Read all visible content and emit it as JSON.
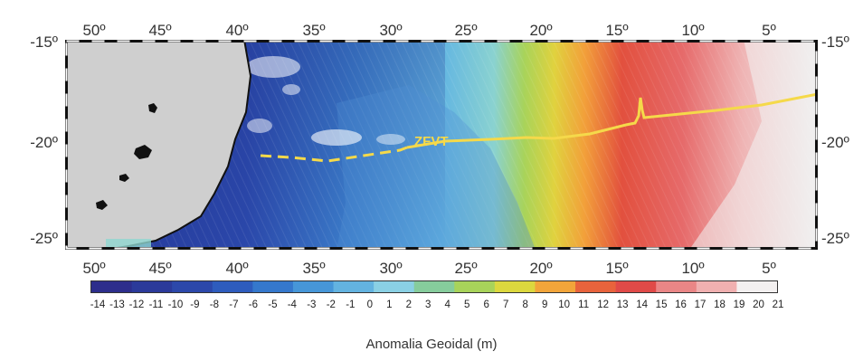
{
  "map": {
    "lon_ticks": [
      "50º",
      "45º",
      "40º",
      "35º",
      "30º",
      "25º",
      "20º",
      "15º",
      "10º",
      "5º"
    ],
    "lat_ticks": [
      "-15º",
      "-20º",
      "-25º"
    ],
    "feature_label": "ZFVT",
    "feature_color": "#f5d94a",
    "land_color": "#cfcfcf"
  },
  "colorbar": {
    "values": [
      "-14",
      "-13",
      "-12",
      "-11",
      "-10",
      "-9",
      "-8",
      "-7",
      "-6",
      "-5",
      "-4",
      "-3",
      "-2",
      "-1",
      "0",
      "1",
      "2",
      "3",
      "4",
      "5",
      "6",
      "7",
      "8",
      "9",
      "10",
      "11",
      "12",
      "13",
      "14",
      "15",
      "16",
      "17",
      "18",
      "19",
      "20",
      "21"
    ],
    "colors": [
      "#2d2e8c",
      "#2b3a9a",
      "#2c48aa",
      "#2e5cbd",
      "#3578cc",
      "#4696d8",
      "#63b3e0",
      "#8ad0e4",
      "#86cc9c",
      "#a8d35a",
      "#dcd83e",
      "#f2a53a",
      "#e8633c",
      "#e04a48",
      "#ea8686",
      "#f0b0b0",
      "#f3f0f0"
    ],
    "title": "Anomalia Geoidal (m)"
  }
}
